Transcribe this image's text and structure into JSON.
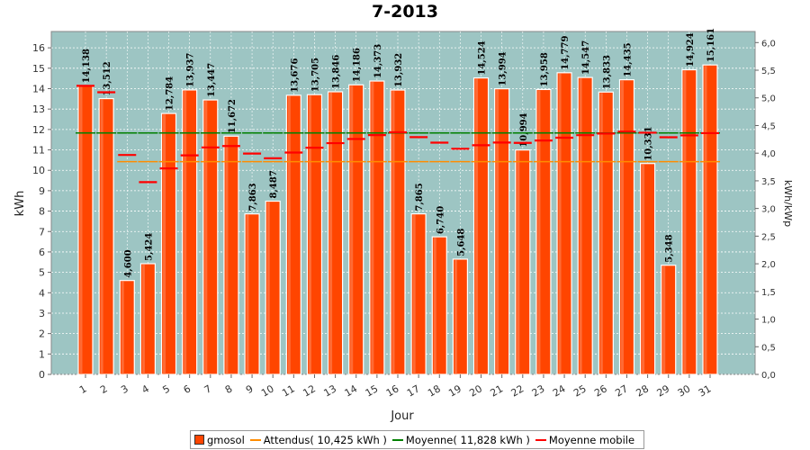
{
  "chart_data": {
    "type": "bar",
    "title": "7-2013",
    "xlabel": "Jour",
    "ylabel": "kWh",
    "ylabel_right": "kWh/kWp",
    "ylim": [
      0,
      16.8
    ],
    "ylim_right": [
      0,
      6.2
    ],
    "yticks": [
      "0",
      "1",
      "2",
      "3",
      "4",
      "5",
      "6",
      "7",
      "8",
      "9",
      "10",
      "11",
      "12",
      "13",
      "14",
      "15",
      "16"
    ],
    "yticks_right": [
      "0,0",
      "0,5",
      "1,0",
      "1,5",
      "2,0",
      "2,5",
      "3,0",
      "3,5",
      "4,0",
      "4,5",
      "5,0",
      "5,5",
      "6,0"
    ],
    "categories": [
      "1",
      "2",
      "3",
      "4",
      "5",
      "6",
      "7",
      "8",
      "9",
      "10",
      "11",
      "12",
      "13",
      "14",
      "15",
      "16",
      "17",
      "18",
      "19",
      "20",
      "21",
      "22",
      "23",
      "24",
      "25",
      "26",
      "27",
      "28",
      "29",
      "30",
      "31"
    ],
    "series": [
      {
        "name": "gmosol",
        "values": [
          14.138,
          13.512,
          4.6,
          5.424,
          12.784,
          13.937,
          13.447,
          11.672,
          7.863,
          8.487,
          13.676,
          13.705,
          13.846,
          14.186,
          14.373,
          13.932,
          7.865,
          6.74,
          5.648,
          14.524,
          13.994,
          10.994,
          13.958,
          14.779,
          14.547,
          13.833,
          14.435,
          10.331,
          5.348,
          14.924,
          15.161
        ],
        "color": "#ff4500"
      },
      {
        "name": "Attendus( 10,425 kWh )",
        "values": [
          null,
          null,
          10.425,
          10.425,
          10.425,
          10.425,
          10.425,
          10.425,
          10.425,
          10.425,
          10.425,
          10.425,
          10.425,
          10.425,
          10.425,
          10.425,
          10.425,
          10.425,
          10.425,
          10.425,
          10.425,
          10.425,
          10.425,
          10.425,
          10.425,
          10.425,
          10.425,
          10.425,
          10.425,
          10.425,
          10.425
        ],
        "color": "#ff8c00"
      },
      {
        "name": "Moyenne( 11,828 kWh )",
        "values": [
          11.828,
          11.828,
          11.828,
          11.828,
          11.828,
          11.828,
          11.828,
          11.828,
          11.828,
          11.828,
          11.828,
          11.828,
          11.828,
          11.828,
          11.828,
          11.828,
          11.828,
          11.828,
          11.828,
          11.828,
          11.828,
          11.828,
          11.828,
          11.828,
          11.828,
          11.828,
          11.828,
          11.828,
          11.828,
          11.828,
          11.828
        ],
        "color": "#008000"
      },
      {
        "name": "Moyenne mobile",
        "values": [
          14.138,
          13.825,
          10.75,
          9.419,
          10.092,
          10.733,
          11.121,
          11.19,
          10.82,
          10.587,
          10.869,
          11.107,
          11.33,
          11.533,
          11.722,
          11.86,
          11.625,
          11.354,
          11.054,
          11.228,
          11.359,
          11.344,
          11.459,
          11.598,
          11.72,
          11.802,
          11.898,
          11.842,
          11.619,
          11.71,
          11.821
        ],
        "color": "#ff0000"
      }
    ],
    "data_labels": [
      "14,138",
      "13,512",
      "4,600",
      "5,424",
      "12,784",
      "13,937",
      "13,447",
      "11,672",
      "7,863",
      "8,487",
      "13,676",
      "13,705",
      "13,846",
      "14,186",
      "14,373",
      "13,932",
      "7,865",
      "6,740",
      "5,648",
      "14,524",
      "13,994",
      "10,994",
      "13,958",
      "14,779",
      "14,547",
      "13,833",
      "14,435",
      "10,331",
      "5,348",
      "14,924",
      "15,161"
    ],
    "grid": true,
    "legend_position": "bottom",
    "colors": {
      "plot_background": "#9dc5c3",
      "bar": "#ff4500",
      "grid": "#ffffff"
    }
  }
}
